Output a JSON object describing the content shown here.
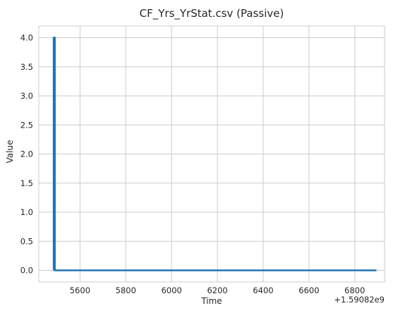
{
  "chart_data": {
    "type": "line",
    "title": "CF_Yrs_YrStat.csv (Passive)",
    "xlabel": "Time",
    "ylabel": "Value",
    "x_offset_label": "+1.59082e9",
    "x_offset": 1590820000,
    "xlim": [
      5420,
      6930
    ],
    "ylim": [
      -0.2,
      4.2
    ],
    "xticks": [
      5600,
      5800,
      6000,
      6200,
      6400,
      6600,
      6800
    ],
    "xtick_labels": [
      "5600",
      "5800",
      "6000",
      "6200",
      "6400",
      "6600",
      "6800"
    ],
    "yticks": [
      0.0,
      0.5,
      1.0,
      1.5,
      2.0,
      2.5,
      3.0,
      3.5,
      4.0
    ],
    "ytick_labels": [
      "0.0",
      "0.5",
      "1.0",
      "1.5",
      "2.0",
      "2.5",
      "3.0",
      "3.5",
      "4.0"
    ],
    "grid": true,
    "series": [
      {
        "name": "Value",
        "color": "#1f77b4",
        "x": [
          5485,
          5485,
          5490,
          5490,
          6895
        ],
        "y": [
          0,
          4,
          4,
          0,
          0
        ]
      }
    ]
  }
}
